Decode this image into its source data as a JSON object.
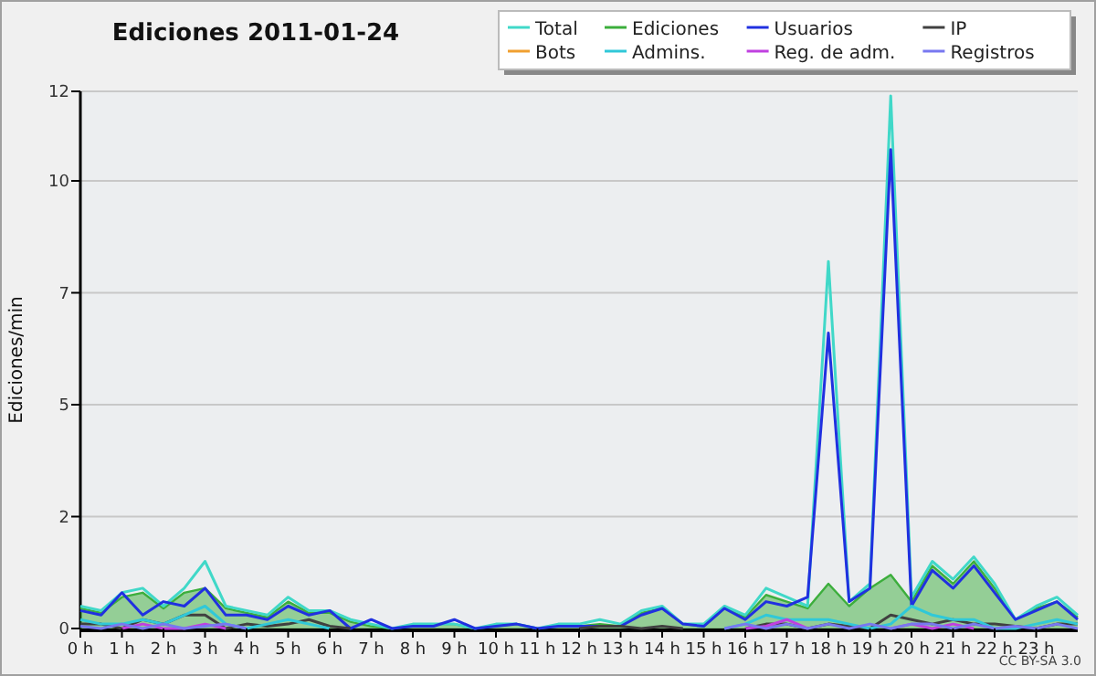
{
  "chart_data": {
    "type": "line",
    "title": "Ediciones  2011-01-24",
    "ylabel": "Ediciones/min",
    "annotations": [
      "CC BY-SA 3.0"
    ],
    "x": [
      0,
      0.5,
      1,
      1.5,
      2,
      2.5,
      3,
      3.5,
      4,
      4.5,
      5,
      5.5,
      6,
      6.5,
      7,
      7.5,
      8,
      8.5,
      9,
      9.5,
      10,
      10.5,
      11,
      11.5,
      12,
      12.5,
      13,
      13.5,
      14,
      14.5,
      15,
      15.5,
      16,
      16.5,
      17,
      17.5,
      18,
      18.5,
      19,
      19.5,
      20,
      20.5,
      21,
      21.5,
      22,
      22.5,
      23,
      23.5,
      24
    ],
    "xlim": [
      0,
      24
    ],
    "xticks": [
      {
        "value": 0,
        "label": "0 h"
      },
      {
        "value": 1,
        "label": "1 h"
      },
      {
        "value": 2,
        "label": "2 h"
      },
      {
        "value": 3,
        "label": "3 h"
      },
      {
        "value": 4,
        "label": "4 h"
      },
      {
        "value": 5,
        "label": "5 h"
      },
      {
        "value": 6,
        "label": "6 h"
      },
      {
        "value": 7,
        "label": "7 h"
      },
      {
        "value": 8,
        "label": "8 h"
      },
      {
        "value": 9,
        "label": "9 h"
      },
      {
        "value": 10,
        "label": "10 h"
      },
      {
        "value": 11,
        "label": "11 h"
      },
      {
        "value": 12,
        "label": "12 h"
      },
      {
        "value": 13,
        "label": "13 h"
      },
      {
        "value": 14,
        "label": "14 h"
      },
      {
        "value": 15,
        "label": "15 h"
      },
      {
        "value": 16,
        "label": "16 h"
      },
      {
        "value": 17,
        "label": "17 h"
      },
      {
        "value": 18,
        "label": "18 h"
      },
      {
        "value": 19,
        "label": "19 h"
      },
      {
        "value": 20,
        "label": "20 h"
      },
      {
        "value": 21,
        "label": "21 h"
      },
      {
        "value": 22,
        "label": "22 h"
      },
      {
        "value": 23,
        "label": "23 h"
      }
    ],
    "ylim": [
      0,
      12
    ],
    "yticks": [
      0,
      {
        "value": 2.5,
        "label": "2"
      },
      5,
      {
        "value": 7.5,
        "label": "7"
      },
      10,
      12
    ],
    "grid": "y",
    "legend": "top right",
    "marker": "none",
    "line_style": "solid",
    "series": [
      {
        "name": "Total",
        "color": "#40d8c8",
        "values": [
          0.5,
          0.4,
          0.8,
          0.9,
          0.5,
          0.9,
          1.5,
          0.5,
          0.4,
          0.3,
          0.7,
          0.4,
          0.4,
          0.2,
          0.1,
          0,
          0.1,
          0.1,
          0.1,
          0,
          0.1,
          0.1,
          0,
          0.1,
          0.1,
          0.2,
          0.1,
          0.4,
          0.5,
          0.1,
          0.1,
          0.5,
          0.3,
          0.9,
          0.7,
          0.5,
          8.2,
          0.6,
          1.0,
          11.9,
          0.7,
          1.5,
          1.1,
          1.6,
          1.0,
          0.2,
          0.5,
          0.7,
          0.3
        ]
      },
      {
        "name": "Ediciones",
        "type": "area",
        "color": "#3cae3c",
        "values": [
          0.45,
          0.35,
          0.7,
          0.8,
          0.45,
          0.8,
          0.9,
          0.45,
          0.35,
          0.25,
          0.6,
          0.35,
          0.35,
          0.15,
          0.05,
          0,
          0.05,
          0.1,
          0.1,
          0,
          0.05,
          0.1,
          0,
          0.05,
          0.05,
          0.1,
          0.05,
          0.35,
          0.45,
          0.1,
          0.05,
          0.45,
          0.25,
          0.75,
          0.6,
          0.45,
          1.0,
          0.5,
          0.9,
          1.2,
          0.6,
          1.4,
          1.0,
          1.5,
          0.9,
          0.2,
          0.45,
          0.6,
          0.25
        ]
      },
      {
        "name": "Usuarios",
        "color": "#2030e0",
        "values": [
          0.4,
          0.3,
          0.8,
          0.3,
          0.6,
          0.5,
          0.9,
          0.3,
          0.3,
          0.2,
          0.5,
          0.3,
          0.4,
          0,
          0.2,
          0,
          0.05,
          0.05,
          0.2,
          0,
          0.05,
          0.1,
          0,
          0.05,
          0.05,
          0.05,
          0.05,
          0.3,
          0.45,
          0.1,
          0.05,
          0.45,
          0.2,
          0.6,
          0.5,
          0.7,
          6.6,
          0.6,
          0.9,
          10.7,
          0.5,
          1.3,
          0.9,
          1.4,
          0.8,
          0.2,
          0.4,
          0.6,
          0.2
        ]
      },
      {
        "name": "IP",
        "color": "#404040",
        "values": [
          0.1,
          0.1,
          0,
          0.2,
          0.1,
          0.3,
          0.3,
          0,
          0.1,
          0.05,
          0.1,
          0.2,
          0.05,
          0,
          null,
          null,
          null,
          null,
          null,
          null,
          null,
          null,
          null,
          null,
          0,
          0.05,
          0.05,
          0,
          0.05,
          0,
          null,
          null,
          0,
          0.1,
          0.1,
          0,
          0.1,
          0.05,
          0,
          0.3,
          0.2,
          0.1,
          0.2,
          0.1,
          0.1,
          0.05,
          0,
          0.1,
          0.1
        ]
      },
      {
        "name": "Bots",
        "color": "#f0a030",
        "values": [
          null,
          null,
          null,
          null,
          null,
          null,
          null,
          null,
          null,
          null,
          null,
          null,
          null,
          null,
          null,
          null,
          null,
          null,
          null,
          null,
          null,
          null,
          null,
          null,
          null,
          null,
          null,
          null,
          null,
          null,
          null,
          null,
          null,
          null,
          null,
          null,
          null,
          null,
          null,
          null,
          null,
          null,
          null,
          null,
          null,
          null,
          null,
          null,
          null
        ]
      },
      {
        "name": "Admins.",
        "color": "#30c8d8",
        "values": [
          0.2,
          0.1,
          0.1,
          0.2,
          0.1,
          0.3,
          0.5,
          0.1,
          0,
          0.1,
          0.2,
          0.1,
          0,
          null,
          null,
          null,
          null,
          null,
          null,
          null,
          null,
          null,
          null,
          null,
          null,
          null,
          null,
          null,
          null,
          null,
          null,
          0,
          0.1,
          0.3,
          0.2,
          0.2,
          0.2,
          0.1,
          0,
          0.1,
          0.5,
          0.3,
          0.2,
          0.2,
          0,
          0,
          0.1,
          0.2,
          0.1
        ]
      },
      {
        "name": "Reg. de adm.",
        "color": "#c040e0",
        "values": [
          null,
          null,
          0,
          0.1,
          0,
          0,
          0.1,
          0,
          null,
          null,
          null,
          null,
          null,
          null,
          null,
          null,
          null,
          null,
          null,
          null,
          null,
          null,
          null,
          null,
          null,
          null,
          null,
          null,
          null,
          null,
          null,
          null,
          0,
          0.05,
          0.2,
          0,
          null,
          null,
          null,
          0,
          0.1,
          0,
          0.1,
          0,
          null,
          null,
          null,
          null,
          null
        ]
      },
      {
        "name": "Registros",
        "color": "#7878f0",
        "values": [
          0.05,
          0,
          0.1,
          0,
          0.1,
          0,
          0.05,
          0.1,
          0,
          null,
          null,
          null,
          null,
          null,
          null,
          null,
          null,
          null,
          null,
          null,
          null,
          null,
          null,
          null,
          null,
          null,
          null,
          null,
          null,
          null,
          null,
          0,
          0.1,
          0,
          0.1,
          0,
          0.1,
          0,
          0.1,
          0,
          0.1,
          0.1,
          0,
          0.1,
          0,
          0.05,
          0,
          0.1,
          0
        ]
      }
    ]
  }
}
